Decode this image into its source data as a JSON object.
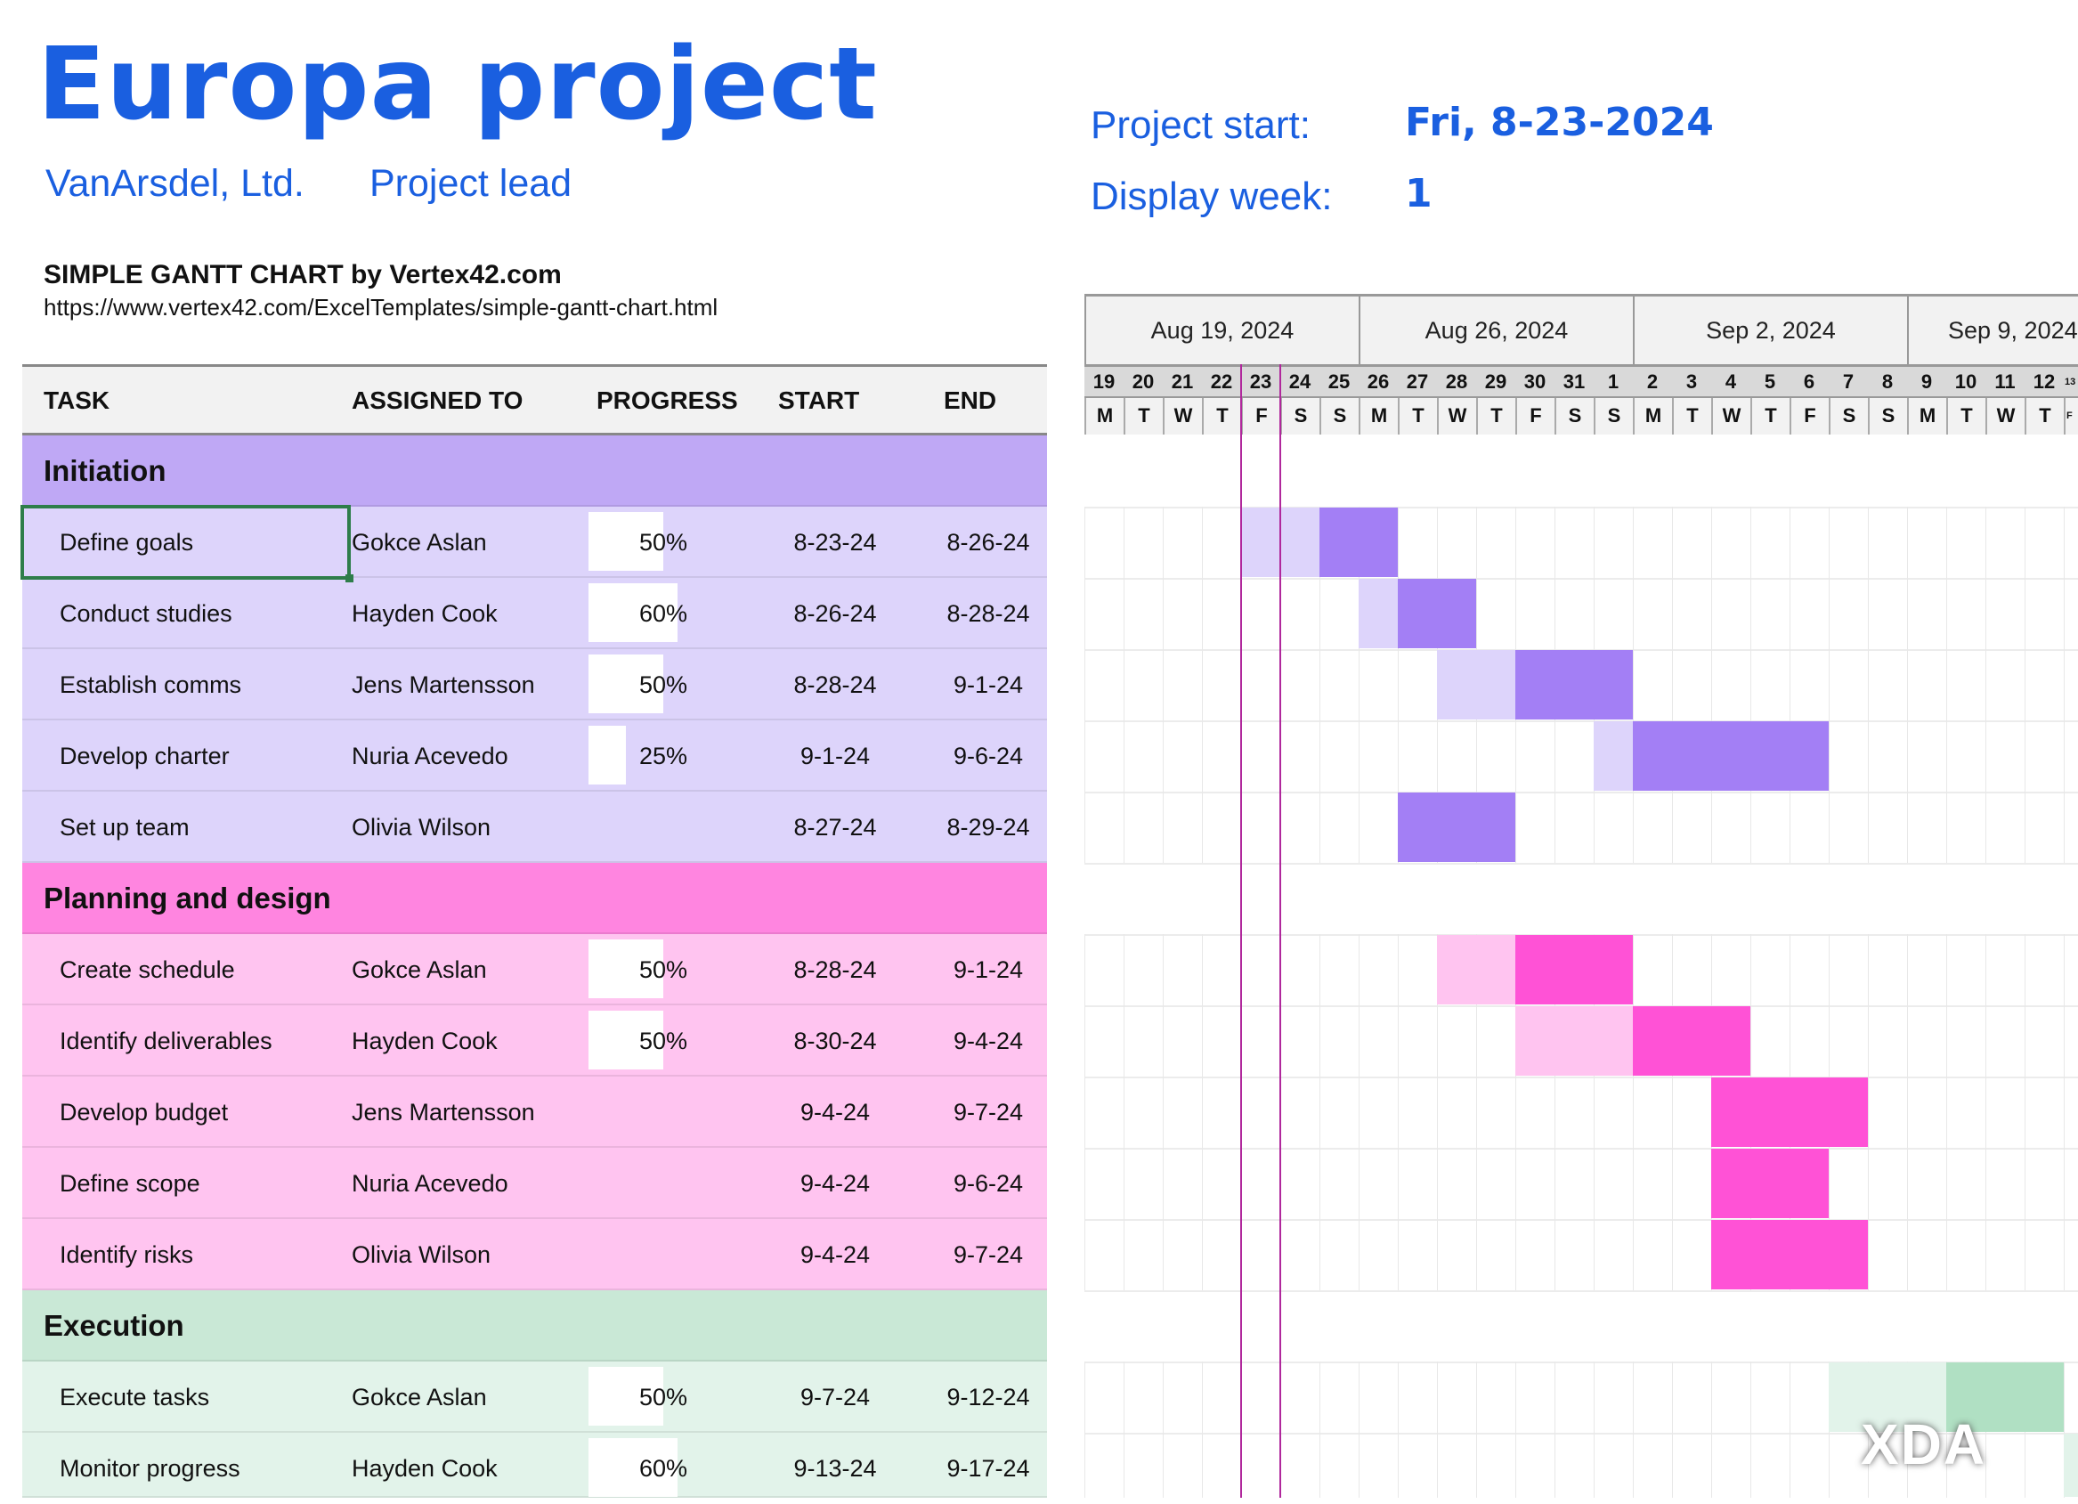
{
  "header": {
    "title": "Europa project",
    "company": "VanArsdel, Ltd.",
    "lead": "Project lead",
    "project_start_label": "Project start:",
    "project_start": "Fri, 8-23-2024",
    "display_week_label": "Display week:",
    "display_week": "1",
    "gantt_title": "SIMPLE GANTT CHART by Vertex42.com",
    "url": "https://www.vertex42.com/ExcelTemplates/simple-gantt-chart.html"
  },
  "columns": [
    "TASK",
    "ASSIGNED TO",
    "PROGRESS",
    "START",
    "END"
  ],
  "weeks": [
    "Aug 19, 2024",
    "Aug 26, 2024",
    "Sep 2, 2024",
    "Sep 9, 2024"
  ],
  "day_numbers": [
    "19",
    "20",
    "21",
    "22",
    "23",
    "24",
    "25",
    "26",
    "27",
    "28",
    "29",
    "30",
    "31",
    "1",
    "2",
    "3",
    "4",
    "5",
    "6",
    "7",
    "8",
    "9",
    "10",
    "11",
    "12",
    "13"
  ],
  "weekdays": [
    "M",
    "T",
    "W",
    "T",
    "F",
    "S",
    "S",
    "M",
    "T",
    "W",
    "T",
    "F",
    "S",
    "S",
    "M",
    "T",
    "W",
    "T",
    "F",
    "S",
    "S",
    "M",
    "T",
    "W",
    "T",
    "F"
  ],
  "colors": {
    "accent": "#1a5fe0",
    "today_line": "#b0279c",
    "selection": "#2e7d4a"
  },
  "groups": [
    {
      "name": "Initiation",
      "colors": {
        "group": "#bfa8f5",
        "row": "#ddd4fb",
        "bar": "#a37ff5",
        "bar_done": "#ddd4fb"
      },
      "tasks": [
        {
          "task": "Define goals",
          "assigned": "Gokce Aslan",
          "progress": "50%",
          "start": "8-23-24",
          "end": "8-26-24"
        },
        {
          "task": "Conduct studies",
          "assigned": "Hayden Cook",
          "progress": "60%",
          "start": "8-26-24",
          "end": "8-28-24"
        },
        {
          "task": "Establish comms",
          "assigned": "Jens Martensson",
          "progress": "50%",
          "start": "8-28-24",
          "end": "9-1-24"
        },
        {
          "task": "Develop charter",
          "assigned": "Nuria Acevedo",
          "progress": "25%",
          "start": "9-1-24",
          "end": "9-6-24"
        },
        {
          "task": "Set up team",
          "assigned": "Olivia Wilson",
          "progress": "",
          "start": "8-27-24",
          "end": "8-29-24"
        }
      ]
    },
    {
      "name": "Planning and design",
      "colors": {
        "group": "#ff85e0",
        "row": "#ffc4f0",
        "bar": "#ff52d6",
        "bar_done": "#ffc4f0"
      },
      "tasks": [
        {
          "task": "Create schedule",
          "assigned": "Gokce Aslan",
          "progress": "50%",
          "start": "8-28-24",
          "end": "9-1-24"
        },
        {
          "task": "Identify deliverables",
          "assigned": "Hayden Cook",
          "progress": "50%",
          "start": "8-30-24",
          "end": "9-4-24"
        },
        {
          "task": "Develop budget",
          "assigned": "Jens Martensson",
          "progress": "",
          "start": "9-4-24",
          "end": "9-7-24"
        },
        {
          "task": "Define scope",
          "assigned": "Nuria Acevedo",
          "progress": "",
          "start": "9-4-24",
          "end": "9-6-24"
        },
        {
          "task": "Identify risks",
          "assigned": "Olivia Wilson",
          "progress": "",
          "start": "9-4-24",
          "end": "9-7-24"
        }
      ]
    },
    {
      "name": "Execution",
      "colors": {
        "group": "#c9e8d6",
        "row": "#e2f3ea",
        "bar": "#b0e0c3",
        "bar_done": "#e2f3ea"
      },
      "tasks": [
        {
          "task": "Execute tasks",
          "assigned": "Gokce Aslan",
          "progress": "50%",
          "start": "9-7-24",
          "end": "9-12-24"
        },
        {
          "task": "Monitor progress",
          "assigned": "Hayden Cook",
          "progress": "60%",
          "start": "9-13-24",
          "end": "9-17-24"
        }
      ]
    }
  ],
  "watermark": "XDA"
}
